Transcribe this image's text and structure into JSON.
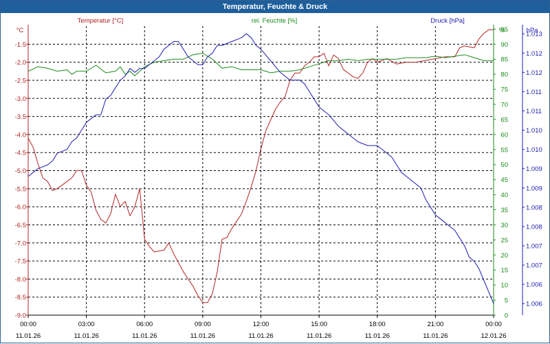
{
  "window": {
    "title": "Temperatur, Feuchte & Druck"
  },
  "colors": {
    "temperature": "#b22222",
    "humidity": "#1a8a1a",
    "pressure": "#1c1cb0",
    "grid": "#000000",
    "titlebar": "#1e5f9b"
  },
  "chart_data": {
    "type": "line",
    "title": "Temperatur, Feuchte & Druck",
    "x_labels": [
      {
        "time": "00:00",
        "date": "11.01.26"
      },
      {
        "time": "03:00",
        "date": "11.01.26"
      },
      {
        "time": "06:00",
        "date": "11.01.26"
      },
      {
        "time": "09:00",
        "date": "11.01.26"
      },
      {
        "time": "12:00",
        "date": "11.01.26"
      },
      {
        "time": "15:00",
        "date": "11.01.26"
      },
      {
        "time": "18:00",
        "date": "11.01.26"
      },
      {
        "time": "21:00",
        "date": "11.01.26"
      },
      {
        "time": "00:00",
        "date": "12.01.26"
      }
    ],
    "xlim_hours": [
      0,
      24
    ],
    "axes": {
      "temperature": {
        "unit": "°C",
        "series_label": "Temperatur [°C]",
        "ylim": [
          -9.0,
          -1.0
        ],
        "ticks": [
          "-1.5",
          "-2.0",
          "-2.5",
          "-3.0",
          "-3.5",
          "-4.0",
          "-4.5",
          "-5.0",
          "-5.5",
          "-6.0",
          "-6.5",
          "-7.0",
          "-7.5",
          "-8.0",
          "-8.5",
          "-9.0"
        ]
      },
      "humidity": {
        "unit": "%",
        "series_label": "rel. Feuchte [%]",
        "ylim": [
          0,
          96
        ],
        "ticks": [
          "95",
          "90",
          "85",
          "80",
          "75",
          "70",
          "65",
          "60",
          "55",
          "50",
          "45",
          "40",
          "35",
          "30",
          "25",
          "20",
          "15",
          "10",
          "5",
          "0"
        ]
      },
      "pressure": {
        "unit": "hPa",
        "series_label": "Druck [hPa]",
        "ylim": [
          1.0058,
          1.0133
        ],
        "ticks": [
          "1.013",
          "1.012",
          "1.012",
          "1.011",
          "1.011",
          "1.010",
          "1.010",
          "1.009",
          "1.009",
          "1.008",
          "1.008",
          "1.007",
          "1.007",
          "1.006",
          "1.006"
        ]
      }
    },
    "series": [
      {
        "name": "Temperatur [°C]",
        "axis": "temperature",
        "points": [
          [
            0,
            -4.1
          ],
          [
            0.25,
            -4.35
          ],
          [
            0.5,
            -4.8
          ],
          [
            0.75,
            -5.2
          ],
          [
            1,
            -5.3
          ],
          [
            1.25,
            -5.55
          ],
          [
            1.5,
            -5.5
          ],
          [
            2,
            -5.3
          ],
          [
            2.25,
            -5.2
          ],
          [
            2.5,
            -5.0
          ],
          [
            2.75,
            -5.0
          ],
          [
            3,
            -5.4
          ],
          [
            3.25,
            -5.6
          ],
          [
            3.5,
            -6.1
          ],
          [
            3.75,
            -6.35
          ],
          [
            4,
            -6.45
          ],
          [
            4.25,
            -6.2
          ],
          [
            4.5,
            -5.65
          ],
          [
            4.75,
            -6.0
          ],
          [
            5,
            -5.85
          ],
          [
            5.25,
            -6.25
          ],
          [
            5.5,
            -6.0
          ],
          [
            5.75,
            -5.5
          ],
          [
            6,
            -6.9
          ],
          [
            6.25,
            -7.1
          ],
          [
            6.5,
            -7.25
          ],
          [
            7,
            -7.2
          ],
          [
            7.25,
            -7.0
          ],
          [
            7.5,
            -7.3
          ],
          [
            7.75,
            -7.55
          ],
          [
            8,
            -7.8
          ],
          [
            8.25,
            -8.0
          ],
          [
            8.5,
            -8.2
          ],
          [
            8.75,
            -8.45
          ],
          [
            9,
            -8.65
          ],
          [
            9.25,
            -8.65
          ],
          [
            9.5,
            -8.4
          ],
          [
            9.75,
            -7.8
          ],
          [
            10,
            -6.9
          ],
          [
            10.25,
            -6.85
          ],
          [
            10.5,
            -6.6
          ],
          [
            10.75,
            -6.4
          ],
          [
            11,
            -6.2
          ],
          [
            11.25,
            -5.85
          ],
          [
            11.5,
            -5.45
          ],
          [
            11.75,
            -5.0
          ],
          [
            12,
            -4.4
          ],
          [
            12.25,
            -3.9
          ],
          [
            12.5,
            -3.6
          ],
          [
            12.75,
            -3.3
          ],
          [
            13,
            -3.1
          ],
          [
            13.25,
            -2.95
          ],
          [
            13.5,
            -2.5
          ],
          [
            13.75,
            -2.3
          ],
          [
            14,
            -2.3
          ],
          [
            14.25,
            -2.1
          ],
          [
            14.5,
            -2.0
          ],
          [
            14.75,
            -1.85
          ],
          [
            15,
            -1.85
          ],
          [
            15.25,
            -1.75
          ],
          [
            15.5,
            -2.1
          ],
          [
            15.75,
            -1.8
          ],
          [
            16,
            -1.9
          ],
          [
            16.25,
            -2.2
          ],
          [
            16.5,
            -2.3
          ],
          [
            16.75,
            -2.4
          ],
          [
            17,
            -2.45
          ],
          [
            17.25,
            -2.3
          ],
          [
            17.5,
            -2.0
          ],
          [
            17.75,
            -1.9
          ],
          [
            18,
            -2.0
          ],
          [
            18.5,
            -1.9
          ],
          [
            19,
            -2.05
          ],
          [
            19.5,
            -2.0
          ],
          [
            20,
            -2.0
          ],
          [
            20.5,
            -1.95
          ],
          [
            21,
            -1.9
          ],
          [
            21.5,
            -1.85
          ],
          [
            22,
            -1.85
          ],
          [
            22.25,
            -1.6
          ],
          [
            22.5,
            -1.55
          ],
          [
            23,
            -1.6
          ],
          [
            23.25,
            -1.35
          ],
          [
            23.5,
            -1.2
          ],
          [
            23.75,
            -1.1
          ],
          [
            24,
            -1.1
          ]
        ]
      },
      {
        "name": "rel. Feuchte [%]",
        "axis": "humidity",
        "points": [
          [
            0,
            81
          ],
          [
            0.5,
            82.5
          ],
          [
            1,
            82
          ],
          [
            1.5,
            81
          ],
          [
            2,
            81.5
          ],
          [
            2.25,
            80
          ],
          [
            2.5,
            81
          ],
          [
            3,
            81
          ],
          [
            3.5,
            83
          ],
          [
            4,
            80.5
          ],
          [
            4.5,
            81
          ],
          [
            4.75,
            82.5
          ],
          [
            5,
            80
          ],
          [
            5.25,
            81
          ],
          [
            5.5,
            79.5
          ],
          [
            6,
            82.5
          ],
          [
            6.5,
            84
          ],
          [
            7,
            84.5
          ],
          [
            7.5,
            85
          ],
          [
            8,
            85
          ],
          [
            8.5,
            86.5
          ],
          [
            9,
            87
          ],
          [
            9.25,
            86
          ],
          [
            9.5,
            85
          ],
          [
            9.75,
            83.5
          ],
          [
            10,
            82
          ],
          [
            10.5,
            82.5
          ],
          [
            11,
            81.5
          ],
          [
            11.5,
            81.5
          ],
          [
            12,
            81.5
          ],
          [
            12.5,
            80.5
          ],
          [
            13,
            81
          ],
          [
            13.5,
            81
          ],
          [
            14,
            81.5
          ],
          [
            14.5,
            82.5
          ],
          [
            15,
            83.5
          ],
          [
            15.5,
            84.5
          ],
          [
            16,
            84.5
          ],
          [
            16.5,
            85
          ],
          [
            17,
            84.5
          ],
          [
            17.5,
            85
          ],
          [
            18,
            85
          ],
          [
            18.5,
            85
          ],
          [
            19,
            85
          ],
          [
            19.5,
            85.5
          ],
          [
            20,
            85.5
          ],
          [
            20.5,
            85.5
          ],
          [
            21,
            86
          ],
          [
            21.5,
            85.5
          ],
          [
            22,
            86
          ],
          [
            22.5,
            86.5
          ],
          [
            23,
            85.5
          ],
          [
            23.5,
            84.5
          ],
          [
            24,
            84.5
          ]
        ]
      },
      {
        "name": "Druck [hPa]",
        "axis": "pressure",
        "points": [
          [
            0,
            1.0094
          ],
          [
            0.25,
            1.0095
          ],
          [
            0.5,
            1.0096
          ],
          [
            1,
            1.0097
          ],
          [
            1.25,
            1.0098
          ],
          [
            1.5,
            1.01
          ],
          [
            2,
            1.0101
          ],
          [
            2.25,
            1.0103
          ],
          [
            2.5,
            1.0104
          ],
          [
            2.75,
            1.0106
          ],
          [
            3,
            1.0108
          ],
          [
            3.25,
            1.0109
          ],
          [
            3.5,
            1.011
          ],
          [
            3.75,
            1.011
          ],
          [
            4,
            1.0114
          ],
          [
            4.25,
            1.0115
          ],
          [
            4.5,
            1.0117
          ],
          [
            4.75,
            1.0119
          ],
          [
            5,
            1.012
          ],
          [
            5.25,
            1.0122
          ],
          [
            5.5,
            1.0121
          ],
          [
            5.75,
            1.0122
          ],
          [
            6,
            1.0122
          ],
          [
            6.25,
            1.0123
          ],
          [
            6.5,
            1.0124
          ],
          [
            6.75,
            1.0125
          ],
          [
            7,
            1.0127
          ],
          [
            7.25,
            1.0128
          ],
          [
            7.5,
            1.0129
          ],
          [
            7.75,
            1.0129
          ],
          [
            8,
            1.0127
          ],
          [
            8.25,
            1.0125
          ],
          [
            8.5,
            1.0124
          ],
          [
            8.75,
            1.0123
          ],
          [
            9,
            1.0123
          ],
          [
            9.25,
            1.0125
          ],
          [
            9.5,
            1.0126
          ],
          [
            9.75,
            1.0128
          ],
          [
            10,
            1.0128
          ],
          [
            10.5,
            1.0129
          ],
          [
            11,
            1.013
          ],
          [
            11.25,
            1.0131
          ],
          [
            11.5,
            1.013
          ],
          [
            11.75,
            1.0128
          ],
          [
            12,
            1.0127
          ],
          [
            12.5,
            1.0124
          ],
          [
            13,
            1.0121
          ],
          [
            13.5,
            1.0119
          ],
          [
            14,
            1.0119
          ],
          [
            14.25,
            1.0118
          ],
          [
            14.5,
            1.0116
          ],
          [
            14.75,
            1.0114
          ],
          [
            15,
            1.0112
          ],
          [
            15.5,
            1.011
          ],
          [
            16,
            1.0107
          ],
          [
            16.5,
            1.0105
          ],
          [
            17,
            1.0103
          ],
          [
            17.5,
            1.0102
          ],
          [
            18,
            1.0102
          ],
          [
            18.25,
            1.0101
          ],
          [
            18.5,
            1.01
          ],
          [
            18.75,
            1.0099
          ],
          [
            19,
            1.0097
          ],
          [
            19.25,
            1.0095
          ],
          [
            19.5,
            1.0094
          ],
          [
            19.75,
            1.0093
          ],
          [
            20,
            1.0092
          ],
          [
            20.25,
            1.0091
          ],
          [
            20.5,
            1.0088
          ],
          [
            20.75,
            1.0086
          ],
          [
            21,
            1.0084
          ],
          [
            21.25,
            1.0083
          ],
          [
            21.5,
            1.0082
          ],
          [
            21.75,
            1.0081
          ],
          [
            22,
            1.008
          ],
          [
            22.25,
            1.0078
          ],
          [
            22.5,
            1.0076
          ],
          [
            22.75,
            1.0073
          ],
          [
            23,
            1.0072
          ],
          [
            23.25,
            1.007
          ],
          [
            23.5,
            1.0067
          ],
          [
            23.75,
            1.0064
          ],
          [
            24,
            1.0061
          ]
        ]
      }
    ]
  }
}
